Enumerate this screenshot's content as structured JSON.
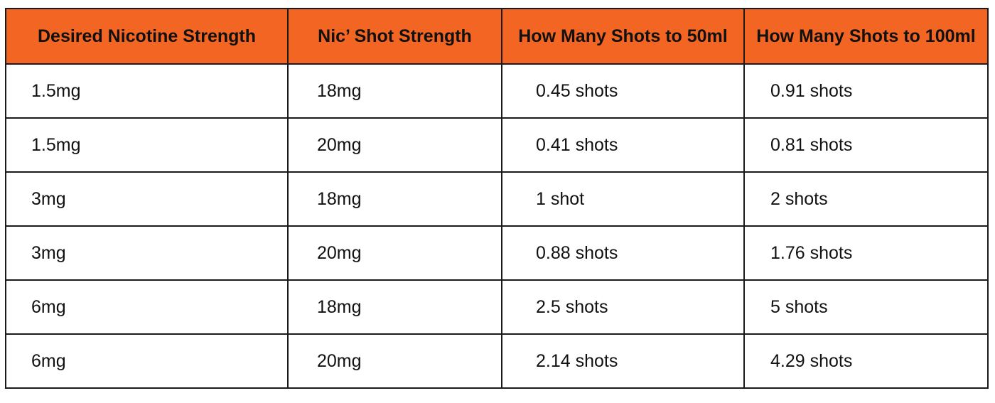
{
  "table": {
    "headers": [
      "Desired Nicotine Strength",
      "Nic’ Shot Strength",
      "How Many Shots to 50ml",
      "How Many Shots to 100ml"
    ],
    "rows": [
      [
        "1.5mg",
        "18mg",
        "0.45 shots",
        "0.91 shots"
      ],
      [
        "1.5mg",
        "20mg",
        "0.41 shots",
        "0.81 shots"
      ],
      [
        "3mg",
        "18mg",
        "1 shot",
        "2 shots"
      ],
      [
        "3mg",
        "20mg",
        "0.88 shots",
        "1.76 shots"
      ],
      [
        "6mg",
        "18mg",
        "2.5 shots",
        "5 shots"
      ],
      [
        "6mg",
        "20mg",
        "2.14 shots",
        "4.29 shots"
      ]
    ]
  },
  "colors": {
    "header_background": "#f26522",
    "border": "#1a1a1a",
    "text": "#111111"
  }
}
